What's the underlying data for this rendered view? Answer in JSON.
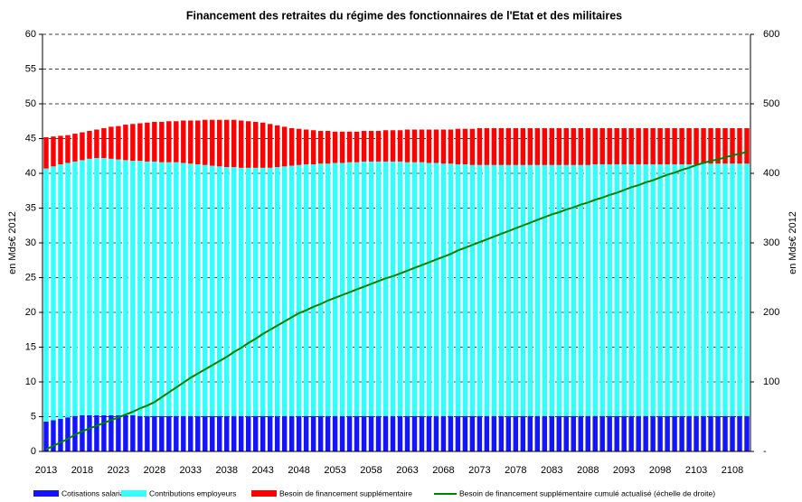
{
  "chart_data": {
    "type": "bar",
    "stacked": true,
    "title": "Financement des retraites du régime des fonctionnaires de l'Etat et des militaires",
    "y_label": "en Mds€ 2012",
    "y2_label": "en Mds€ 2012",
    "ylim": [
      0,
      60
    ],
    "yticks": [
      0,
      5,
      10,
      15,
      20,
      25,
      30,
      35,
      40,
      45,
      50,
      55,
      60
    ],
    "y2lim": [
      0,
      600
    ],
    "y2ticks": [
      {
        "value": 0,
        "label": "-"
      },
      100,
      200,
      300,
      400,
      500,
      600
    ],
    "grid": true,
    "legend": "bottom",
    "categories": [
      "2013",
      null,
      null,
      null,
      null,
      "2018",
      null,
      null,
      null,
      null,
      "2023",
      null,
      null,
      null,
      null,
      "2028",
      null,
      null,
      null,
      null,
      "2033",
      null,
      null,
      null,
      null,
      "2038",
      null,
      null,
      null,
      null,
      "2043",
      null,
      null,
      null,
      null,
      "2048",
      null,
      null,
      null,
      null,
      "2053",
      null,
      null,
      null,
      null,
      "2058",
      null,
      null,
      null,
      null,
      "2063",
      null,
      null,
      null,
      null,
      "2068",
      null,
      null,
      null,
      null,
      "2073",
      null,
      null,
      null,
      null,
      "2078",
      null,
      null,
      null,
      null,
      "2083",
      null,
      null,
      null,
      null,
      "2088",
      null,
      null,
      null,
      null,
      "2093",
      null,
      null,
      null,
      null,
      "2098",
      null,
      null,
      null,
      null,
      "2103",
      null,
      null,
      null,
      null,
      "2108",
      null,
      null
    ],
    "series": [
      {
        "name": "Cotisations salariales",
        "color": "#1414ff",
        "type": "bar",
        "values": [
          4.3,
          4.5,
          4.7,
          4.9,
          5.1,
          5.2,
          5.2,
          5.2,
          5.2,
          5.2,
          5.2,
          5.2,
          5.2,
          5.1,
          5.1,
          5.1,
          5.1,
          5.1,
          5.1,
          5.1,
          5.1,
          5.1,
          5.1,
          5.1,
          5.1,
          5.1,
          5.1,
          5.1,
          5.1,
          5.1,
          5.1,
          5.1,
          5.1,
          5.1,
          5.1,
          5.1,
          5.1,
          5.1,
          5.1,
          5.1,
          5.1,
          5.1,
          5.1,
          5.1,
          5.1,
          5.1,
          5.1,
          5.1,
          5.1,
          5.1,
          5.1,
          5.1,
          5.1,
          5.1,
          5.1,
          5.1,
          5.1,
          5.1,
          5.1,
          5.1,
          5.1,
          5.1,
          5.1,
          5.1,
          5.1,
          5.1,
          5.1,
          5.1,
          5.1,
          5.1,
          5.1,
          5.1,
          5.1,
          5.1,
          5.1,
          5.1,
          5.1,
          5.1,
          5.1,
          5.1,
          5.1,
          5.1,
          5.1,
          5.1,
          5.1,
          5.1,
          5.1,
          5.1,
          5.1,
          5.1,
          5.1,
          5.1,
          5.1,
          5.1,
          5.1,
          5.1,
          5.1,
          5.1
        ]
      },
      {
        "name": "Contributions employeurs",
        "color": "#33ffff",
        "type": "bar",
        "values": [
          36.4,
          36.5,
          36.6,
          36.6,
          36.6,
          36.7,
          36.9,
          37.0,
          37.0,
          36.9,
          36.8,
          36.7,
          36.6,
          36.7,
          36.6,
          36.6,
          36.5,
          36.5,
          36.5,
          36.4,
          36.3,
          36.2,
          36.1,
          36.0,
          35.9,
          35.8,
          35.8,
          35.7,
          35.7,
          35.7,
          35.7,
          35.7,
          35.8,
          35.9,
          36.0,
          36.1,
          36.2,
          36.2,
          36.3,
          36.3,
          36.4,
          36.4,
          36.5,
          36.5,
          36.6,
          36.6,
          36.6,
          36.6,
          36.6,
          36.6,
          36.5,
          36.5,
          36.5,
          36.4,
          36.4,
          36.3,
          36.3,
          36.2,
          36.2,
          36.1,
          36.1,
          36.1,
          36.1,
          36.1,
          36.1,
          36.1,
          36.1,
          36.1,
          36.1,
          36.1,
          36.1,
          36.1,
          36.1,
          36.1,
          36.1,
          36.1,
          36.2,
          36.2,
          36.2,
          36.2,
          36.2,
          36.2,
          36.2,
          36.2,
          36.2,
          36.2,
          36.2,
          36.2,
          36.2,
          36.2,
          36.2,
          36.3,
          36.3,
          36.3,
          36.3,
          36.3,
          36.3,
          36.3
        ]
      },
      {
        "name": "Besoin de financement supplémentaire",
        "color": "#ff0000",
        "type": "bar",
        "values": [
          4.5,
          4.3,
          4.1,
          4.0,
          4.0,
          4.0,
          4.0,
          4.1,
          4.3,
          4.6,
          4.8,
          5.1,
          5.3,
          5.4,
          5.6,
          5.7,
          5.8,
          5.9,
          5.9,
          6.1,
          6.2,
          6.3,
          6.5,
          6.6,
          6.7,
          6.8,
          6.8,
          6.8,
          6.7,
          6.6,
          6.5,
          6.3,
          6.0,
          5.7,
          5.4,
          5.2,
          5.0,
          4.9,
          4.7,
          4.7,
          4.5,
          4.5,
          4.4,
          4.4,
          4.4,
          4.4,
          4.4,
          4.5,
          4.5,
          4.5,
          4.7,
          4.7,
          4.7,
          4.8,
          4.8,
          4.9,
          4.9,
          5.1,
          5.1,
          5.2,
          5.3,
          5.3,
          5.3,
          5.3,
          5.3,
          5.3,
          5.3,
          5.3,
          5.3,
          5.3,
          5.3,
          5.3,
          5.3,
          5.3,
          5.3,
          5.3,
          5.2,
          5.2,
          5.2,
          5.2,
          5.2,
          5.2,
          5.2,
          5.2,
          5.2,
          5.2,
          5.2,
          5.2,
          5.2,
          5.2,
          5.2,
          5.1,
          5.1,
          5.1,
          5.1,
          5.1,
          5.1,
          5.1
        ]
      },
      {
        "name": "Besoin de financement supplémentaire cumulé actualisé (échelle de droite)",
        "color": "#008000",
        "type": "line",
        "axis": "y2",
        "values": [
          3,
          8,
          13,
          18,
          24,
          29,
          33,
          37,
          41,
          45,
          49,
          53,
          57,
          62,
          66,
          71,
          78,
          85,
          92,
          99,
          106,
          112,
          118,
          124,
          130,
          136,
          143,
          149,
          156,
          162,
          169,
          175,
          181,
          187,
          193,
          199,
          203,
          208,
          212,
          217,
          221,
          225,
          229,
          233,
          237,
          241,
          245,
          249,
          252,
          256,
          260,
          264,
          268,
          272,
          276,
          280,
          284,
          289,
          293,
          297,
          301,
          305,
          309,
          313,
          317,
          321,
          325,
          329,
          333,
          337,
          341,
          344,
          348,
          351,
          355,
          358,
          362,
          365,
          369,
          372,
          376,
          380,
          383,
          387,
          390,
          394,
          398,
          401,
          405,
          408,
          412,
          415,
          418,
          420,
          423,
          426,
          428,
          431
        ]
      }
    ]
  }
}
